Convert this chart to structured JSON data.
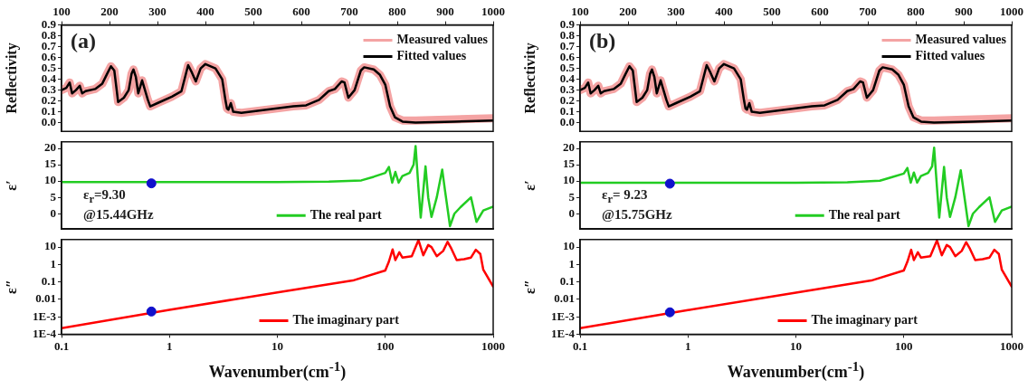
{
  "chart_data": [
    {
      "type": "line",
      "ylabel": "Reflectivity",
      "annotations": [
        "(a)"
      ],
      "legend": "top right",
      "xlim": [
        100,
        1000
      ],
      "xticks": [
        100,
        200,
        300,
        400,
        500,
        600,
        700,
        800,
        900,
        1000
      ],
      "ylim": [
        -0.08,
        0.9
      ],
      "yticks": [
        {
          "value": 0,
          "label": "0.0"
        },
        0.1,
        0.2,
        0.3,
        0.4,
        0.5,
        0.6,
        0.7,
        0.8,
        0.9
      ],
      "series": [
        {
          "name": "Measured values",
          "color": "#f4a3a3",
          "x": [
            100,
            110,
            117,
            122,
            130,
            138,
            143,
            150,
            170,
            185,
            195,
            203,
            210,
            215,
            218,
            230,
            240,
            246,
            250,
            255,
            260,
            268,
            274,
            280,
            285,
            300,
            330,
            350,
            364,
            372,
            380,
            390,
            400,
            421,
            435,
            442,
            445,
            448,
            453,
            458,
            475,
            583,
            610,
            637,
            657,
            670,
            684,
            690,
            698,
            711,
            724,
            731,
            751,
            764,
            775,
            785,
            795,
            811,
            838,
            919,
            1000
          ],
          "values": [
            0.3,
            0.32,
            0.37,
            0.27,
            0.3,
            0.34,
            0.27,
            0.29,
            0.31,
            0.36,
            0.45,
            0.52,
            0.48,
            0.3,
            0.19,
            0.23,
            0.3,
            0.45,
            0.49,
            0.42,
            0.27,
            0.39,
            0.3,
            0.21,
            0.15,
            0.18,
            0.24,
            0.29,
            0.53,
            0.46,
            0.38,
            0.5,
            0.54,
            0.5,
            0.4,
            0.2,
            0.13,
            0.12,
            0.18,
            0.1,
            0.09,
            0.15,
            0.16,
            0.21,
            0.29,
            0.31,
            0.38,
            0.37,
            0.23,
            0.3,
            0.48,
            0.51,
            0.49,
            0.44,
            0.35,
            0.15,
            0.05,
            0.02,
            0.02,
            0.03,
            0.04
          ]
        },
        {
          "name": "Fitted values",
          "color": "#000000",
          "x": [
            100,
            110,
            117,
            122,
            130,
            138,
            143,
            150,
            170,
            185,
            195,
            203,
            210,
            215,
            218,
            230,
            240,
            246,
            250,
            255,
            260,
            268,
            274,
            280,
            285,
            300,
            330,
            350,
            364,
            372,
            380,
            390,
            400,
            421,
            435,
            442,
            445,
            448,
            453,
            458,
            475,
            583,
            610,
            637,
            657,
            670,
            684,
            690,
            698,
            711,
            724,
            731,
            751,
            764,
            775,
            785,
            795,
            811,
            838,
            919,
            1000
          ],
          "values": [
            0.3,
            0.32,
            0.37,
            0.27,
            0.3,
            0.34,
            0.27,
            0.29,
            0.31,
            0.36,
            0.45,
            0.52,
            0.48,
            0.3,
            0.19,
            0.23,
            0.3,
            0.45,
            0.49,
            0.42,
            0.27,
            0.39,
            0.3,
            0.21,
            0.15,
            0.18,
            0.24,
            0.29,
            0.53,
            0.46,
            0.38,
            0.5,
            0.54,
            0.5,
            0.4,
            0.2,
            0.13,
            0.12,
            0.18,
            0.1,
            0.09,
            0.15,
            0.16,
            0.21,
            0.29,
            0.31,
            0.38,
            0.37,
            0.23,
            0.3,
            0.48,
            0.51,
            0.49,
            0.44,
            0.35,
            0.15,
            0.05,
            0.01,
            0.0,
            0.01,
            0.02
          ]
        }
      ]
    },
    {
      "type": "line",
      "ylabel": "ε′",
      "annotations": [
        "ε$_{r}$=9.30",
        "@15.44GHz"
      ],
      "legend": "bottom",
      "log": "x",
      "tick_labels": "y",
      "xlim": [
        0.1,
        1000
      ],
      "ylim": [
        -4.7,
        22
      ],
      "yticks": [
        0,
        5,
        10,
        15,
        20
      ],
      "series": [
        {
          "name": "The real part",
          "color": "#22cc22",
          "x": [
            0.1,
            1,
            10,
            30,
            60,
            78,
            100,
            108,
            116,
            124,
            133,
            144,
            168,
            183,
            191,
            203,
            213,
            225,
            236,
            250,
            268,
            300,
            337,
            358,
            398,
            437,
            498,
            623,
            700,
            810,
            1000
          ],
          "values": [
            9.7,
            9.7,
            9.7,
            9.8,
            10.2,
            11.3,
            12.5,
            14.3,
            9.5,
            12.8,
            9.5,
            11.5,
            12.5,
            15,
            20.7,
            8,
            -1.2,
            7,
            14.5,
            5,
            -1,
            5,
            13.5,
            7,
            -3.8,
            0,
            2,
            5,
            -2.5,
            1,
            2.2
          ]
        },
        {
          "type": "scatter",
          "marker": "circle",
          "color": "#1010cc",
          "x": [
            0.68
          ],
          "values": [
            9.3
          ]
        }
      ]
    },
    {
      "type": "line",
      "ylabel": "ε″",
      "xlabel": "Wavenumber(cm$^{-1}$)",
      "legend": "bottom",
      "log": "xy",
      "xlim": [
        0.1,
        1000
      ],
      "xticks": [
        0.1,
        1,
        10,
        100,
        1000
      ],
      "ylim": [
        0.0001,
        27
      ],
      "yticks": [
        {
          "value": 0.0001,
          "label": "1E-4"
        },
        {
          "value": 0.001,
          "label": "1E-3"
        },
        0.01,
        0.1,
        1,
        10
      ],
      "series": [
        {
          "name": "The imaginary part",
          "color": "#ff0000",
          "x": [
            0.1,
            1,
            10,
            50,
            100,
            108,
            117,
            124,
            135,
            144,
            176,
            203,
            225,
            250,
            268,
            300,
            344,
            378,
            410,
            459,
            538,
            623,
            690,
            760,
            810,
            1000
          ],
          "values": [
            0.00022,
            0.0025,
            0.025,
            0.12,
            0.45,
            1.45,
            7.3,
            1.8,
            5,
            2.5,
            3,
            25,
            3.4,
            13,
            10,
            3,
            6,
            20,
            8,
            1.8,
            2,
            2.5,
            7,
            4,
            0.5,
            0.054
          ]
        },
        {
          "type": "scatter",
          "marker": "circle",
          "color": "#1010cc",
          "x": [
            0.68
          ],
          "values": [
            0.002
          ]
        }
      ]
    },
    {
      "type": "line",
      "ylabel": "Reflectivity",
      "annotations": [
        "(b)"
      ],
      "legend": "top right",
      "xlim": [
        100,
        1000
      ],
      "xticks": [
        100,
        200,
        300,
        400,
        500,
        600,
        700,
        800,
        900,
        1000
      ],
      "ylim": [
        -0.08,
        0.9
      ],
      "yticks": [
        {
          "value": 0,
          "label": "0.0"
        },
        0.1,
        0.2,
        0.3,
        0.4,
        0.5,
        0.6,
        0.7,
        0.8,
        0.9
      ],
      "series": [
        {
          "name": "Measured values",
          "color": "#f4a3a3",
          "x": [
            100,
            110,
            117,
            122,
            130,
            138,
            143,
            150,
            170,
            185,
            195,
            203,
            210,
            215,
            218,
            230,
            240,
            246,
            250,
            255,
            260,
            268,
            274,
            280,
            285,
            300,
            330,
            350,
            364,
            372,
            380,
            390,
            400,
            421,
            435,
            442,
            445,
            448,
            453,
            458,
            475,
            583,
            610,
            637,
            657,
            670,
            684,
            690,
            698,
            711,
            724,
            731,
            751,
            764,
            775,
            785,
            795,
            811,
            838,
            919,
            1000
          ],
          "values": [
            0.3,
            0.32,
            0.37,
            0.27,
            0.3,
            0.34,
            0.27,
            0.29,
            0.31,
            0.36,
            0.45,
            0.52,
            0.48,
            0.3,
            0.19,
            0.23,
            0.3,
            0.45,
            0.49,
            0.42,
            0.27,
            0.39,
            0.3,
            0.21,
            0.15,
            0.18,
            0.24,
            0.29,
            0.53,
            0.46,
            0.38,
            0.5,
            0.54,
            0.5,
            0.4,
            0.2,
            0.13,
            0.12,
            0.18,
            0.1,
            0.09,
            0.15,
            0.16,
            0.21,
            0.29,
            0.31,
            0.38,
            0.37,
            0.23,
            0.3,
            0.48,
            0.51,
            0.49,
            0.44,
            0.35,
            0.15,
            0.05,
            0.02,
            0.02,
            0.03,
            0.04
          ]
        },
        {
          "name": "Fitted values",
          "color": "#000000",
          "x": [
            100,
            110,
            117,
            122,
            130,
            138,
            143,
            150,
            170,
            185,
            195,
            203,
            210,
            215,
            218,
            230,
            240,
            246,
            250,
            255,
            260,
            268,
            274,
            280,
            285,
            300,
            330,
            350,
            364,
            372,
            380,
            390,
            400,
            421,
            435,
            442,
            445,
            448,
            453,
            458,
            475,
            583,
            610,
            637,
            657,
            670,
            684,
            690,
            698,
            711,
            724,
            731,
            751,
            764,
            775,
            785,
            795,
            811,
            838,
            919,
            1000
          ],
          "values": [
            0.3,
            0.32,
            0.37,
            0.27,
            0.3,
            0.34,
            0.27,
            0.29,
            0.31,
            0.36,
            0.45,
            0.52,
            0.48,
            0.3,
            0.19,
            0.23,
            0.3,
            0.45,
            0.49,
            0.42,
            0.27,
            0.39,
            0.3,
            0.21,
            0.15,
            0.18,
            0.24,
            0.29,
            0.53,
            0.46,
            0.38,
            0.5,
            0.54,
            0.5,
            0.4,
            0.2,
            0.13,
            0.12,
            0.18,
            0.1,
            0.09,
            0.15,
            0.16,
            0.21,
            0.29,
            0.31,
            0.38,
            0.37,
            0.23,
            0.3,
            0.48,
            0.51,
            0.49,
            0.44,
            0.35,
            0.15,
            0.05,
            0.01,
            0.0,
            0.01,
            0.02
          ]
        }
      ]
    },
    {
      "type": "line",
      "ylabel": "ε′",
      "annotations": [
        "ε$_{r}$= 9.23",
        "@15.75GHz"
      ],
      "legend": "bottom",
      "log": "x",
      "tick_labels": "y",
      "xlim": [
        0.1,
        1000
      ],
      "ylim": [
        -4.7,
        22
      ],
      "yticks": [
        0,
        5,
        10,
        15,
        20
      ],
      "series": [
        {
          "name": "The real part",
          "color": "#22cc22",
          "x": [
            0.1,
            1,
            10,
            30,
            60,
            78,
            100,
            108,
            116,
            124,
            133,
            144,
            168,
            183,
            191,
            203,
            213,
            225,
            236,
            250,
            268,
            300,
            337,
            358,
            398,
            437,
            498,
            623,
            700,
            810,
            1000
          ],
          "values": [
            9.5,
            9.5,
            9.5,
            9.6,
            10.1,
            11.2,
            12.3,
            14,
            9.5,
            12.6,
            9.5,
            11.5,
            12.5,
            14.5,
            20.2,
            8,
            -1.2,
            7,
            14.3,
            5,
            -1,
            5,
            13.3,
            7,
            -3.8,
            0,
            2,
            5,
            -2.5,
            1,
            2.2
          ]
        },
        {
          "type": "scatter",
          "marker": "circle",
          "color": "#1010cc",
          "x": [
            0.68
          ],
          "values": [
            9.2
          ]
        }
      ]
    },
    {
      "type": "line",
      "ylabel": "ε″",
      "xlabel": "Wavenumber(cm$^{-1}$)",
      "legend": "bottom",
      "log": "xy",
      "xlim": [
        0.1,
        1000
      ],
      "xticks": [
        0.1,
        1,
        10,
        100,
        1000
      ],
      "ylim": [
        0.0001,
        27
      ],
      "yticks": [
        {
          "value": 0.0001,
          "label": "1E-4"
        },
        {
          "value": 0.001,
          "label": "1E-3"
        },
        0.01,
        0.1,
        1,
        10
      ],
      "series": [
        {
          "name": "The imaginary part",
          "color": "#ff0000",
          "x": [
            0.1,
            1,
            10,
            50,
            100,
            108,
            117,
            124,
            135,
            144,
            176,
            203,
            225,
            250,
            268,
            300,
            344,
            378,
            410,
            459,
            538,
            623,
            690,
            760,
            810,
            1000
          ],
          "values": [
            0.00022,
            0.0024,
            0.024,
            0.12,
            0.45,
            1.45,
            7,
            1.8,
            5,
            2.5,
            3,
            24,
            3.4,
            13,
            10,
            3,
            6,
            19,
            8,
            1.8,
            2,
            2.5,
            7,
            4,
            0.5,
            0.054
          ]
        },
        {
          "type": "scatter",
          "marker": "circle",
          "color": "#1010cc",
          "x": [
            0.68
          ],
          "values": [
            0.0018
          ]
        }
      ]
    }
  ]
}
